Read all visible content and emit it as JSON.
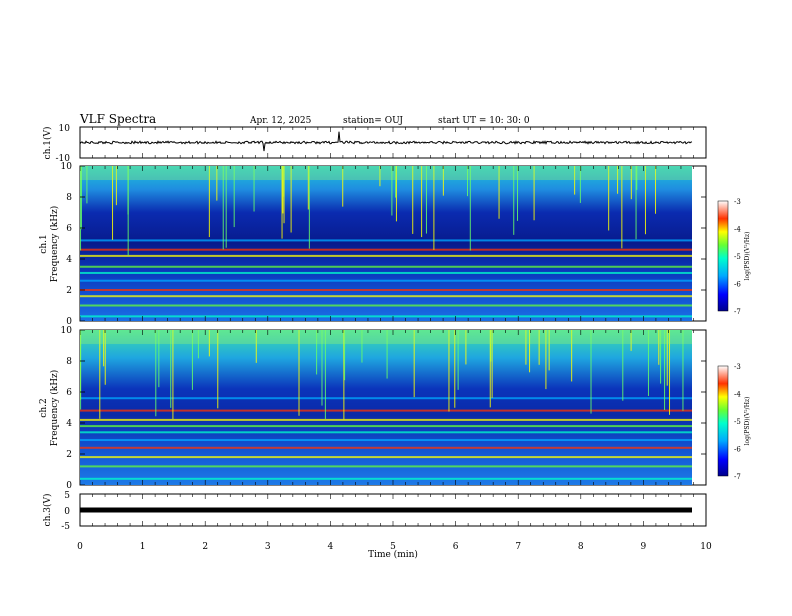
{
  "header": {
    "title": "VLF Spectra",
    "date": "Apr. 12, 2025",
    "station": "station= OUJ",
    "start": "start  UT  =   10: 30: 0"
  },
  "chart_data": [
    {
      "type": "line",
      "panel": "ch1-waveform",
      "ylabel": "ch.1(V)",
      "ylim": [
        -10,
        10
      ],
      "yticks": [
        "10",
        "-10"
      ],
      "xlim": [
        0,
        10
      ],
      "series": [
        {
          "baseline": 0
        }
      ]
    },
    {
      "type": "heatmap",
      "panel": "ch1-spectrogram",
      "ylabel_line1": "ch.1",
      "ylabel_line2": "Frequency (kHz)",
      "ylim": [
        0,
        10
      ],
      "yticks": [
        "0",
        "2",
        "4",
        "6",
        "8",
        "10"
      ],
      "xlim": [
        0,
        10
      ],
      "colorbar": {
        "label": "log(PSD)(V²/Hz)",
        "range": [
          -7,
          -3
        ],
        "ticks": [
          "-3",
          "-4",
          "-5",
          "-6",
          "-7"
        ]
      },
      "bands_khz": [
        0.3,
        1.0,
        1.6,
        2.0,
        2.6,
        3.1,
        3.5,
        4.2,
        4.6,
        5.2
      ]
    },
    {
      "type": "heatmap",
      "panel": "ch2-spectrogram",
      "ylabel_line1": "ch.2",
      "ylabel_line2": "Frequency (kHz)",
      "ylim": [
        0,
        10
      ],
      "yticks": [
        "0",
        "2",
        "4",
        "6",
        "8",
        "10"
      ],
      "xlim": [
        0,
        10
      ],
      "colorbar": {
        "label": "log(PSD)(V²/Hz)",
        "range": [
          -7,
          -3
        ],
        "ticks": [
          "-3",
          "-4",
          "-5",
          "-6",
          "-7"
        ]
      },
      "bands_khz": [
        0.4,
        1.2,
        1.8,
        2.4,
        2.9,
        3.4,
        3.8,
        4.2,
        4.8,
        5.6
      ]
    },
    {
      "type": "line",
      "panel": "ch3-waveform",
      "ylabel": "ch.3(V)",
      "ylim": [
        -5,
        5
      ],
      "yticks": [
        "5",
        "0",
        "-5"
      ],
      "xlim": [
        0,
        10
      ],
      "xlabel": "Time  (min)",
      "xticks": [
        "0",
        "1",
        "2",
        "3",
        "4",
        "5",
        "6",
        "7",
        "8",
        "9",
        "10"
      ],
      "series": [
        {
          "baseline": 0
        }
      ]
    }
  ]
}
